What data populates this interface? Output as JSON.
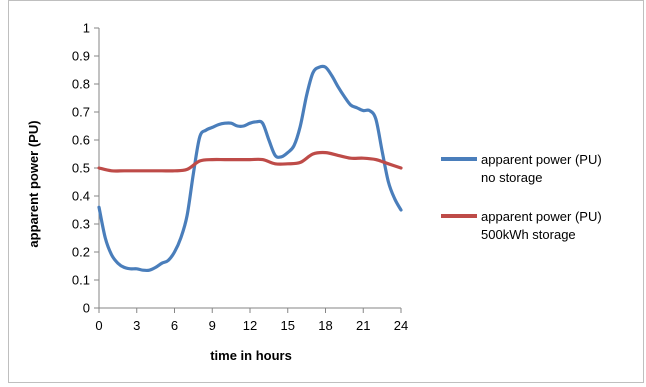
{
  "chart_data": {
    "type": "line",
    "title": "",
    "xlabel": "time in hours",
    "ylabel": "apparent power (PU)",
    "xlim": [
      0,
      24
    ],
    "ylim": [
      0,
      1
    ],
    "x_ticks": [
      0,
      3,
      6,
      9,
      12,
      15,
      18,
      21,
      24
    ],
    "y_ticks": [
      0,
      0.1,
      0.2,
      0.3,
      0.4,
      0.5,
      0.6,
      0.7,
      0.8,
      0.9,
      1
    ],
    "grid": false,
    "legend_position": "right",
    "series": [
      {
        "name": "apparent power (PU) no storage",
        "legend_lines": [
          "apparent power (PU)",
          "no storage"
        ],
        "color": "#4a7ebb",
        "x": [
          0,
          0.5,
          1,
          1.5,
          2,
          2.5,
          3,
          3.5,
          4,
          4.5,
          5,
          5.5,
          6,
          6.5,
          7,
          7.5,
          8,
          8.5,
          9,
          9.5,
          10,
          10.5,
          11,
          11.5,
          12,
          12.5,
          13,
          13.5,
          14,
          14.5,
          15,
          15.5,
          16,
          16.5,
          17,
          17.5,
          18,
          18.5,
          19,
          19.5,
          20,
          20.5,
          21,
          21.5,
          22,
          22.5,
          23,
          23.5,
          24
        ],
        "y": [
          0.36,
          0.25,
          0.19,
          0.16,
          0.145,
          0.14,
          0.14,
          0.135,
          0.135,
          0.145,
          0.16,
          0.17,
          0.2,
          0.25,
          0.33,
          0.48,
          0.61,
          0.635,
          0.645,
          0.655,
          0.66,
          0.66,
          0.65,
          0.65,
          0.66,
          0.665,
          0.66,
          0.6,
          0.545,
          0.54,
          0.555,
          0.58,
          0.65,
          0.76,
          0.84,
          0.86,
          0.86,
          0.83,
          0.79,
          0.755,
          0.725,
          0.715,
          0.705,
          0.705,
          0.675,
          0.56,
          0.45,
          0.39,
          0.35
        ]
      },
      {
        "name": "apparent power (PU) 500kWh storage",
        "legend_lines": [
          "apparent power (PU)",
          "500kWh storage"
        ],
        "color": "#be4b48",
        "x": [
          0,
          1,
          2,
          3,
          4,
          5,
          6,
          7,
          8,
          9,
          10,
          11,
          12,
          13,
          14,
          15,
          16,
          17,
          18,
          19,
          20,
          21,
          22,
          23,
          24
        ],
        "y": [
          0.5,
          0.49,
          0.49,
          0.49,
          0.49,
          0.49,
          0.49,
          0.495,
          0.525,
          0.53,
          0.53,
          0.53,
          0.53,
          0.53,
          0.515,
          0.515,
          0.52,
          0.55,
          0.555,
          0.545,
          0.535,
          0.535,
          0.53,
          0.515,
          0.5
        ]
      }
    ]
  }
}
